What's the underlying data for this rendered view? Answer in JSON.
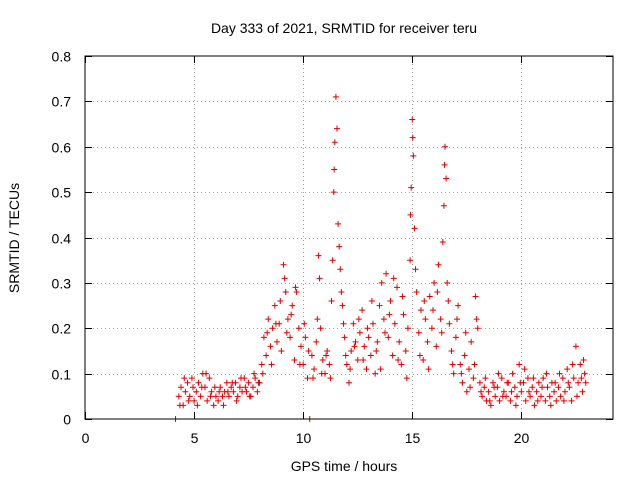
{
  "chart_data": {
    "type": "scatter",
    "title": "Day 333 of 2021, SRMTID for receiver teru",
    "xlabel": "GPS time / hours",
    "ylabel": "SRMTID / TECUs",
    "xlim": [
      0,
      24.2
    ],
    "ylim": [
      0,
      0.8
    ],
    "xticks": [
      0,
      5,
      10,
      15,
      20
    ],
    "yticks": [
      0,
      0.1,
      0.2,
      0.3,
      0.4,
      0.5,
      0.6,
      0.7,
      0.8
    ],
    "xtick_labels": [
      "0",
      "5",
      "10",
      "15",
      "20"
    ],
    "ytick_labels": [
      "0",
      "0.1",
      "0.2",
      "0.3",
      "0.4",
      "0.5",
      "0.6",
      "0.7",
      "0.8"
    ],
    "grid": true,
    "marker": "plus",
    "color": "#e00000",
    "series": [
      {
        "name": "teru",
        "points": [
          [
            4.15,
            0.0
          ],
          [
            10.3,
            0.0
          ],
          [
            4.3,
            0.05
          ],
          [
            4.4,
            0.07
          ],
          [
            4.5,
            0.03
          ],
          [
            4.6,
            0.06
          ],
          [
            4.7,
            0.08
          ],
          [
            4.8,
            0.05
          ],
          [
            4.9,
            0.09
          ],
          [
            5.0,
            0.04
          ],
          [
            5.1,
            0.06
          ],
          [
            5.2,
            0.08
          ],
          [
            5.3,
            0.05
          ],
          [
            5.4,
            0.1
          ],
          [
            5.5,
            0.07
          ],
          [
            5.6,
            0.04
          ],
          [
            5.7,
            0.09
          ],
          [
            5.8,
            0.06
          ],
          [
            5.9,
            0.03
          ],
          [
            6.0,
            0.05
          ],
          [
            6.1,
            0.04
          ],
          [
            6.2,
            0.07
          ],
          [
            6.3,
            0.05
          ],
          [
            6.4,
            0.06
          ],
          [
            6.5,
            0.08
          ],
          [
            6.6,
            0.05
          ],
          [
            6.7,
            0.07
          ],
          [
            6.8,
            0.06
          ],
          [
            6.9,
            0.08
          ],
          [
            7.0,
            0.05
          ],
          [
            7.1,
            0.07
          ],
          [
            7.2,
            0.06
          ],
          [
            7.3,
            0.09
          ],
          [
            7.4,
            0.06
          ],
          [
            7.5,
            0.08
          ],
          [
            7.6,
            0.05
          ],
          [
            7.7,
            0.07
          ],
          [
            7.8,
            0.09
          ],
          [
            7.9,
            0.06
          ],
          [
            8.0,
            0.08
          ],
          [
            8.1,
            0.12
          ],
          [
            8.2,
            0.18
          ],
          [
            8.3,
            0.14
          ],
          [
            8.4,
            0.22
          ],
          [
            8.5,
            0.16
          ],
          [
            8.6,
            0.2
          ],
          [
            8.7,
            0.25
          ],
          [
            8.8,
            0.17
          ],
          [
            8.9,
            0.21
          ],
          [
            9.0,
            0.15
          ],
          [
            9.1,
            0.34
          ],
          [
            9.15,
            0.31
          ],
          [
            9.2,
            0.28
          ],
          [
            9.3,
            0.22
          ],
          [
            9.4,
            0.18
          ],
          [
            9.5,
            0.25
          ],
          [
            9.6,
            0.13
          ],
          [
            9.7,
            0.28
          ],
          [
            9.8,
            0.2
          ],
          [
            9.9,
            0.16
          ],
          [
            10.0,
            0.12
          ],
          [
            10.1,
            0.18
          ],
          [
            10.2,
            0.09
          ],
          [
            10.4,
            0.14
          ],
          [
            10.5,
            0.11
          ],
          [
            10.6,
            0.17
          ],
          [
            10.7,
            0.36
          ],
          [
            10.75,
            0.31
          ],
          [
            10.8,
            0.2
          ],
          [
            10.9,
            0.13
          ],
          [
            11.0,
            0.1
          ],
          [
            11.1,
            0.15
          ],
          [
            11.2,
            0.12
          ],
          [
            11.3,
            0.26
          ],
          [
            11.4,
            0.5
          ],
          [
            11.45,
            0.61
          ],
          [
            11.5,
            0.71
          ],
          [
            11.55,
            0.64
          ],
          [
            11.6,
            0.43
          ],
          [
            11.7,
            0.33
          ],
          [
            11.8,
            0.25
          ],
          [
            11.9,
            0.18
          ],
          [
            12.0,
            0.12
          ],
          [
            12.1,
            0.08
          ],
          [
            12.2,
            0.15
          ],
          [
            12.3,
            0.21
          ],
          [
            12.4,
            0.17
          ],
          [
            12.5,
            0.13
          ],
          [
            12.6,
            0.19
          ],
          [
            12.7,
            0.24
          ],
          [
            12.8,
            0.16
          ],
          [
            12.9,
            0.11
          ],
          [
            13.0,
            0.18
          ],
          [
            13.1,
            0.14
          ],
          [
            13.2,
            0.21
          ],
          [
            13.3,
            0.1
          ],
          [
            13.4,
            0.17
          ],
          [
            13.5,
            0.25
          ],
          [
            13.6,
            0.3
          ],
          [
            13.7,
            0.22
          ],
          [
            13.8,
            0.32
          ],
          [
            13.9,
            0.18
          ],
          [
            14.0,
            0.26
          ],
          [
            14.1,
            0.14
          ],
          [
            14.2,
            0.21
          ],
          [
            14.3,
            0.29
          ],
          [
            14.4,
            0.17
          ],
          [
            14.5,
            0.12
          ],
          [
            14.6,
            0.23
          ],
          [
            14.7,
            0.15
          ],
          [
            14.8,
            0.2
          ],
          [
            14.9,
            0.35
          ],
          [
            14.95,
            0.51
          ],
          [
            15.0,
            0.66
          ],
          [
            15.05,
            0.58
          ],
          [
            15.1,
            0.42
          ],
          [
            15.2,
            0.28
          ],
          [
            15.3,
            0.19
          ],
          [
            15.4,
            0.24
          ],
          [
            15.5,
            0.13
          ],
          [
            15.6,
            0.22
          ],
          [
            15.7,
            0.17
          ],
          [
            15.8,
            0.27
          ],
          [
            15.9,
            0.2
          ],
          [
            16.0,
            0.3
          ],
          [
            16.1,
            0.16
          ],
          [
            16.2,
            0.34
          ],
          [
            16.3,
            0.22
          ],
          [
            16.4,
            0.39
          ],
          [
            16.45,
            0.47
          ],
          [
            16.5,
            0.6
          ],
          [
            16.55,
            0.53
          ],
          [
            16.6,
            0.3
          ],
          [
            16.7,
            0.21
          ],
          [
            16.8,
            0.15
          ],
          [
            16.9,
            0.1
          ],
          [
            17.0,
            0.18
          ],
          [
            17.1,
            0.25
          ],
          [
            17.2,
            0.12
          ],
          [
            17.3,
            0.08
          ],
          [
            17.4,
            0.14
          ],
          [
            17.5,
            0.06
          ],
          [
            17.6,
            0.11
          ],
          [
            17.7,
            0.17
          ],
          [
            17.8,
            0.09
          ],
          [
            17.9,
            0.27
          ],
          [
            18.0,
            0.2
          ],
          [
            18.1,
            0.08
          ],
          [
            18.2,
            0.05
          ],
          [
            18.3,
            0.07
          ],
          [
            18.4,
            0.04
          ],
          [
            18.5,
            0.06
          ],
          [
            18.6,
            0.03
          ],
          [
            18.7,
            0.08
          ],
          [
            18.8,
            0.05
          ],
          [
            18.9,
            0.07
          ],
          [
            19.0,
            0.04
          ],
          [
            19.1,
            0.09
          ],
          [
            19.2,
            0.06
          ],
          [
            19.3,
            0.05
          ],
          [
            19.4,
            0.08
          ],
          [
            19.5,
            0.04
          ],
          [
            19.6,
            0.1
          ],
          [
            19.7,
            0.07
          ],
          [
            19.8,
            0.05
          ],
          [
            19.9,
            0.12
          ],
          [
            20.0,
            0.06
          ],
          [
            20.1,
            0.08
          ],
          [
            20.2,
            0.04
          ],
          [
            20.3,
            0.09
          ],
          [
            20.4,
            0.05
          ],
          [
            20.5,
            0.07
          ],
          [
            20.6,
            0.03
          ],
          [
            20.7,
            0.06
          ],
          [
            20.8,
            0.08
          ],
          [
            20.9,
            0.05
          ],
          [
            21.0,
            0.09
          ],
          [
            21.1,
            0.04
          ],
          [
            21.2,
            0.07
          ],
          [
            21.3,
            0.05
          ],
          [
            21.4,
            0.08
          ],
          [
            21.5,
            0.06
          ],
          [
            21.6,
            0.04
          ],
          [
            21.7,
            0.07
          ],
          [
            21.8,
            0.05
          ],
          [
            21.9,
            0.09
          ],
          [
            22.0,
            0.06
          ],
          [
            22.1,
            0.11
          ],
          [
            22.2,
            0.07
          ],
          [
            22.3,
            0.04
          ],
          [
            22.4,
            0.09
          ],
          [
            22.5,
            0.16
          ],
          [
            22.6,
            0.08
          ],
          [
            22.7,
            0.12
          ],
          [
            22.8,
            0.06
          ],
          [
            22.9,
            0.1
          ],
          [
            22.95,
            0.08
          ],
          [
            4.35,
            0.03
          ],
          [
            4.55,
            0.09
          ],
          [
            4.75,
            0.04
          ],
          [
            4.95,
            0.07
          ],
          [
            5.15,
            0.03
          ],
          [
            5.35,
            0.07
          ],
          [
            5.55,
            0.1
          ],
          [
            5.75,
            0.05
          ],
          [
            5.95,
            0.07
          ],
          [
            6.15,
            0.06
          ],
          [
            6.35,
            0.03
          ],
          [
            6.55,
            0.06
          ],
          [
            6.75,
            0.08
          ],
          [
            6.95,
            0.04
          ],
          [
            7.15,
            0.09
          ],
          [
            7.35,
            0.07
          ],
          [
            7.55,
            0.05
          ],
          [
            7.75,
            0.1
          ],
          [
            7.95,
            0.08
          ],
          [
            8.15,
            0.1
          ],
          [
            8.35,
            0.19
          ],
          [
            8.55,
            0.12
          ],
          [
            8.75,
            0.21
          ],
          [
            8.95,
            0.26
          ],
          [
            9.25,
            0.19
          ],
          [
            9.45,
            0.23
          ],
          [
            9.65,
            0.29
          ],
          [
            9.85,
            0.12
          ],
          [
            10.05,
            0.21
          ],
          [
            10.25,
            0.15
          ],
          [
            10.45,
            0.09
          ],
          [
            10.65,
            0.22
          ],
          [
            10.85,
            0.1
          ],
          [
            11.05,
            0.14
          ],
          [
            11.25,
            0.09
          ],
          [
            11.35,
            0.35
          ],
          [
            11.42,
            0.55
          ],
          [
            11.65,
            0.38
          ],
          [
            11.75,
            0.28
          ],
          [
            11.85,
            0.21
          ],
          [
            11.95,
            0.14
          ],
          [
            12.15,
            0.11
          ],
          [
            12.35,
            0.16
          ],
          [
            12.55,
            0.22
          ],
          [
            12.75,
            0.13
          ],
          [
            12.95,
            0.2
          ],
          [
            13.15,
            0.26
          ],
          [
            13.35,
            0.15
          ],
          [
            13.55,
            0.11
          ],
          [
            13.75,
            0.19
          ],
          [
            13.95,
            0.23
          ],
          [
            14.15,
            0.31
          ],
          [
            14.35,
            0.13
          ],
          [
            14.55,
            0.27
          ],
          [
            14.75,
            0.09
          ],
          [
            14.92,
            0.45
          ],
          [
            15.02,
            0.62
          ],
          [
            15.15,
            0.33
          ],
          [
            15.35,
            0.14
          ],
          [
            15.55,
            0.26
          ],
          [
            15.75,
            0.11
          ],
          [
            15.95,
            0.24
          ],
          [
            16.15,
            0.28
          ],
          [
            16.35,
            0.19
          ],
          [
            16.48,
            0.56
          ],
          [
            16.65,
            0.26
          ],
          [
            16.85,
            0.12
          ],
          [
            17.05,
            0.22
          ],
          [
            17.25,
            0.1
          ],
          [
            17.45,
            0.19
          ],
          [
            17.65,
            0.07
          ],
          [
            17.85,
            0.12
          ],
          [
            17.95,
            0.22
          ],
          [
            18.15,
            0.06
          ],
          [
            18.35,
            0.09
          ],
          [
            18.55,
            0.04
          ],
          [
            18.75,
            0.07
          ],
          [
            18.95,
            0.1
          ],
          [
            19.15,
            0.05
          ],
          [
            19.35,
            0.08
          ],
          [
            19.55,
            0.06
          ],
          [
            19.75,
            0.03
          ],
          [
            19.95,
            0.08
          ],
          [
            20.15,
            0.11
          ],
          [
            20.35,
            0.06
          ],
          [
            20.55,
            0.09
          ],
          [
            20.75,
            0.04
          ],
          [
            20.95,
            0.07
          ],
          [
            21.15,
            0.1
          ],
          [
            21.35,
            0.03
          ],
          [
            21.55,
            0.08
          ],
          [
            21.75,
            0.1
          ],
          [
            21.95,
            0.04
          ],
          [
            22.15,
            0.08
          ],
          [
            22.35,
            0.12
          ],
          [
            22.55,
            0.05
          ],
          [
            22.75,
            0.09
          ],
          [
            22.85,
            0.13
          ]
        ]
      }
    ]
  }
}
